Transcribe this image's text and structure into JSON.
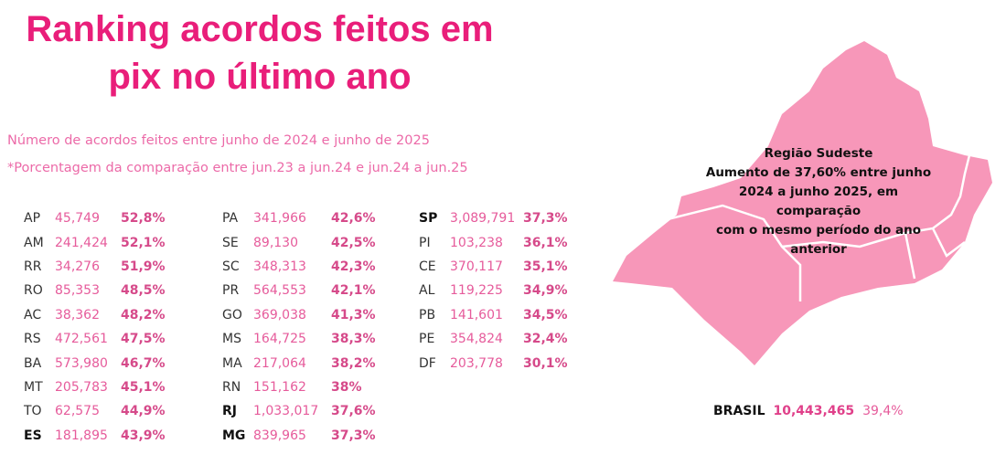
{
  "title_line1": "Ranking acordos feitos em",
  "title_line2": "pix no último ano",
  "subtitle": "Número de acordos feitos entre junho de 2024 e junho de 2025",
  "note": "*Porcentagem da comparação entre jun.23 a jun.24 e jun.24 a jun.25",
  "columns": [
    [
      [
        "AP",
        "45,749",
        "52,8%",
        false
      ],
      [
        "AM",
        "241,424",
        "52,1%",
        false
      ],
      [
        "RR",
        "34,276",
        "51,9%",
        false
      ],
      [
        "RO",
        "85,353",
        "48,5%",
        false
      ],
      [
        "AC",
        "38,362",
        "48,2%",
        false
      ],
      [
        "RS",
        "472,561",
        "47,5%",
        false
      ],
      [
        "BA",
        "573,980",
        "46,7%",
        false
      ],
      [
        "MT",
        "205,783",
        "45,1%",
        false
      ],
      [
        "TO",
        "62,575",
        "44,9%",
        false
      ],
      [
        "ES",
        "181,895",
        "43,9%",
        true
      ]
    ],
    [
      [
        "PA",
        "341,966",
        "42,6%",
        false
      ],
      [
        "SE",
        "89,130",
        "42,5%",
        false
      ],
      [
        "SC",
        "348,313",
        "42,3%",
        false
      ],
      [
        "PR",
        "564,553",
        "42,1%",
        false
      ],
      [
        "GO",
        "369,038",
        "41,3%",
        false
      ],
      [
        "MS",
        "164,725",
        "38,3%",
        false
      ],
      [
        "MA",
        "217,064",
        "38,2%",
        false
      ],
      [
        "RN",
        "151,162",
        "38%",
        false
      ],
      [
        "RJ",
        "1,033,017",
        "37,6%",
        true
      ],
      [
        "MG",
        "839,965",
        "37,3%",
        true
      ]
    ],
    [
      [
        "SP",
        "3,089,791",
        "37,3%",
        true
      ],
      [
        "PI",
        "103,238",
        "36,1%",
        false
      ],
      [
        "CE",
        "370,117",
        "35,1%",
        false
      ],
      [
        "AL",
        "119,225",
        "34,9%",
        false
      ],
      [
        "PB",
        "141,601",
        "34,5%",
        false
      ],
      [
        "PE",
        "354,824",
        "32,4%",
        false
      ],
      [
        "DF",
        "203,778",
        "30,1%",
        false
      ]
    ]
  ],
  "map": {
    "region": "Região Sudeste",
    "lines": [
      "Aumento de 37,60% entre junho",
      "2024 a junho 2025, em comparação",
      "com o mesmo período do ano",
      "anterior"
    ],
    "color": "#f797b9"
  },
  "brasil": {
    "label": "BRASIL",
    "value": "10,443,465",
    "pct": "39,4%"
  }
}
